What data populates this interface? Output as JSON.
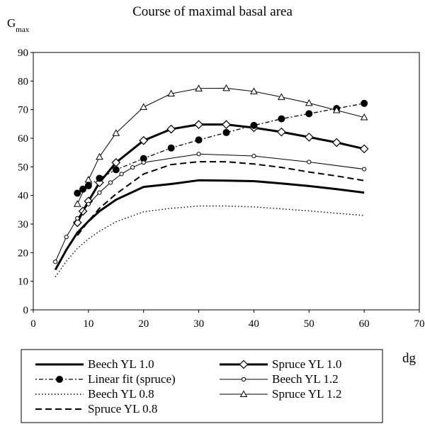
{
  "chart_data": {
    "type": "line",
    "title": "Course of maximal basal area",
    "ylabel_main": "G",
    "ylabel_sub": "max",
    "xlabel": "dg",
    "xlim": [
      0,
      70
    ],
    "ylim": [
      0,
      90
    ],
    "xticks": [
      0,
      10,
      20,
      30,
      40,
      50,
      60,
      70
    ],
    "yticks": [
      0,
      10,
      20,
      30,
      40,
      50,
      60,
      70,
      80,
      90
    ],
    "grid": false,
    "legend_position": "bottom",
    "series": [
      {
        "name": "Beech YL 1.0",
        "style": "thick-solid",
        "marker": "none",
        "points": [
          [
            4,
            14
          ],
          [
            6,
            21
          ],
          [
            8,
            27
          ],
          [
            10,
            31
          ],
          [
            12,
            34.5
          ],
          [
            15,
            38.5
          ],
          [
            20,
            43
          ],
          [
            25,
            44
          ],
          [
            30,
            45.3
          ],
          [
            35,
            45.2
          ],
          [
            40,
            45
          ],
          [
            45,
            44.2
          ],
          [
            50,
            43.3
          ],
          [
            55,
            42.2
          ],
          [
            60,
            41
          ]
        ]
      },
      {
        "name": "Spruce YL 1.0",
        "style": "thick-solid",
        "marker": "diamond",
        "points": [
          [
            8,
            30.5
          ],
          [
            9,
            34.5
          ],
          [
            10,
            38
          ],
          [
            12,
            44.5
          ],
          [
            15,
            51.5
          ],
          [
            20,
            59.2
          ],
          [
            25,
            63.2
          ],
          [
            30,
            64.8
          ],
          [
            35,
            64.8
          ],
          [
            40,
            63.7
          ],
          [
            45,
            62.2
          ],
          [
            50,
            60.4
          ],
          [
            55,
            58.5
          ],
          [
            60,
            56.3
          ]
        ]
      },
      {
        "name": "Linear fit (spruce)",
        "style": "dot-dash",
        "marker": "filled-circle",
        "points": [
          [
            8,
            40.8
          ],
          [
            9,
            42.2
          ],
          [
            10,
            43.4
          ],
          [
            12,
            46
          ],
          [
            15,
            49
          ],
          [
            20,
            52.9
          ],
          [
            25,
            56.6
          ],
          [
            30,
            59.4
          ],
          [
            35,
            62
          ],
          [
            40,
            64.5
          ],
          [
            45,
            66.8
          ],
          [
            50,
            68.6
          ],
          [
            55,
            70.4
          ],
          [
            60,
            72.2
          ]
        ]
      },
      {
        "name": "Beech YL 1.2",
        "style": "thin-solid",
        "marker": "open-circle",
        "points": [
          [
            4,
            16.8
          ],
          [
            6,
            25.5
          ],
          [
            8,
            32
          ],
          [
            10,
            37
          ],
          [
            12,
            41
          ],
          [
            14,
            44.5
          ],
          [
            16,
            47.5
          ],
          [
            18,
            49.8
          ],
          [
            20,
            51.5
          ],
          [
            30,
            54.5
          ],
          [
            40,
            53.8
          ],
          [
            50,
            51.7
          ],
          [
            60,
            49.2
          ]
        ]
      },
      {
        "name": "Beech YL 0.8",
        "style": "dotted",
        "marker": "none",
        "points": [
          [
            4,
            11.5
          ],
          [
            6,
            17
          ],
          [
            8,
            21.5
          ],
          [
            10,
            24.8
          ],
          [
            12,
            27.5
          ],
          [
            15,
            30.8
          ],
          [
            20,
            34.3
          ],
          [
            25,
            35.5
          ],
          [
            30,
            36.3
          ],
          [
            35,
            36.3
          ],
          [
            40,
            36
          ],
          [
            45,
            35.3
          ],
          [
            50,
            34.6
          ],
          [
            55,
            33.8
          ],
          [
            60,
            33
          ]
        ]
      },
      {
        "name": "Spruce YL 1.2",
        "style": "thin-solid",
        "marker": "open-triangle",
        "points": [
          [
            8,
            37
          ],
          [
            10,
            45.5
          ],
          [
            12,
            53.5
          ],
          [
            15,
            61.8
          ],
          [
            20,
            70.9
          ],
          [
            25,
            75.6
          ],
          [
            30,
            77.4
          ],
          [
            35,
            77.5
          ],
          [
            40,
            76.4
          ],
          [
            45,
            74.4
          ],
          [
            50,
            72.3
          ],
          [
            55,
            69.8
          ],
          [
            60,
            67.3
          ]
        ]
      },
      {
        "name": "Spruce YL 0.8",
        "style": "dashed",
        "marker": "none",
        "points": [
          [
            8,
            26
          ],
          [
            10,
            31
          ],
          [
            12,
            35.5
          ],
          [
            15,
            40.5
          ],
          [
            20,
            47.5
          ],
          [
            25,
            50.8
          ],
          [
            30,
            51.8
          ],
          [
            35,
            51.8
          ],
          [
            40,
            51
          ],
          [
            45,
            49.8
          ],
          [
            50,
            48.2
          ],
          [
            55,
            46.8
          ],
          [
            60,
            45.2
          ]
        ]
      }
    ]
  }
}
